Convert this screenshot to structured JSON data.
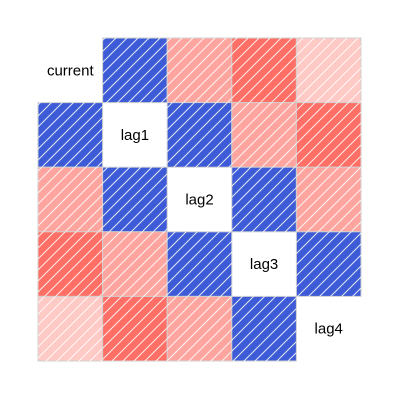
{
  "chart_data": {
    "type": "heatmap",
    "subtype": "correlogram",
    "title": "",
    "variables": [
      "current",
      "lag1",
      "lag2",
      "lag3",
      "lag4"
    ],
    "matrix": [
      [
        null,
        -1.0,
        0.5,
        0.8,
        0.3
      ],
      [
        -1.0,
        null,
        -1.0,
        0.5,
        0.8
      ],
      [
        0.5,
        -1.0,
        null,
        -1.0,
        0.5
      ],
      [
        0.8,
        0.5,
        -1.0,
        null,
        -1.0
      ],
      [
        0.3,
        0.8,
        0.5,
        -1.0,
        null
      ]
    ],
    "value_range": [
      -1,
      1
    ],
    "colors": {
      "negative": "#3d5bd6",
      "positive": "#ff4b3e",
      "neutral": "#ffffff",
      "hatch": "#ffffff",
      "border": "#d0d0d0"
    },
    "shading": "diagonal-hatch",
    "grid": true,
    "legend": "none"
  }
}
